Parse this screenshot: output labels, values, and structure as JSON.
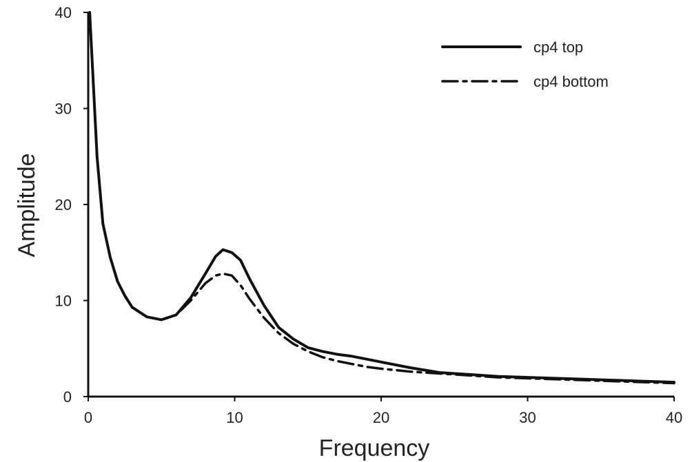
{
  "chart_data": {
    "type": "line",
    "xlabel": "Frequency",
    "ylabel": "Amplitude",
    "xlim": [
      0,
      40
    ],
    "ylim": [
      0,
      40
    ],
    "xticks": [
      0,
      10,
      20,
      30,
      40
    ],
    "yticks": [
      0,
      10,
      20,
      30,
      40
    ],
    "grid": false,
    "legend_position": "top-right",
    "series": [
      {
        "name": "cp4 top",
        "style": "solid",
        "color": "#111111",
        "x": [
          0.1,
          0.3,
          0.6,
          1.0,
          1.5,
          2.0,
          2.5,
          3.0,
          4.0,
          5.0,
          6.0,
          7.0,
          8.0,
          8.7,
          9.2,
          9.8,
          10.4,
          11.0,
          12.0,
          13.0,
          14.0,
          15.0,
          16.0,
          17.0,
          18.0,
          19.0,
          20.0,
          22.0,
          24.0,
          26.0,
          28.0,
          30.0,
          32.0,
          34.0,
          36.0,
          38.0,
          40.0
        ],
        "y": [
          40,
          34,
          25,
          18,
          14.5,
          12,
          10.5,
          9.3,
          8.3,
          8.0,
          8.5,
          10.3,
          12.8,
          14.6,
          15.3,
          15.0,
          14.2,
          12.3,
          9.5,
          7.2,
          6.0,
          5.1,
          4.7,
          4.4,
          4.2,
          3.9,
          3.6,
          3.0,
          2.5,
          2.3,
          2.1,
          2.0,
          1.9,
          1.8,
          1.7,
          1.6,
          1.5
        ]
      },
      {
        "name": "cp4 bottom",
        "style": "dashdot",
        "color": "#111111",
        "x": [
          0.1,
          0.3,
          0.6,
          1.0,
          1.5,
          2.0,
          2.5,
          3.0,
          4.0,
          5.0,
          6.0,
          7.0,
          8.0,
          8.7,
          9.2,
          9.8,
          10.4,
          11.0,
          12.0,
          13.0,
          14.0,
          15.0,
          16.0,
          17.0,
          18.0,
          19.0,
          20.0,
          22.0,
          24.0,
          26.0,
          28.0,
          30.0,
          32.0,
          34.0,
          36.0,
          38.0,
          40.0
        ],
        "y": [
          40,
          34,
          25,
          18,
          14.5,
          12,
          10.5,
          9.3,
          8.3,
          8.0,
          8.5,
          10.0,
          11.8,
          12.6,
          12.8,
          12.6,
          11.6,
          10.2,
          8.2,
          6.6,
          5.5,
          4.7,
          4.1,
          3.7,
          3.4,
          3.1,
          2.9,
          2.6,
          2.4,
          2.2,
          2.0,
          1.9,
          1.8,
          1.7,
          1.6,
          1.5,
          1.4
        ]
      }
    ]
  }
}
